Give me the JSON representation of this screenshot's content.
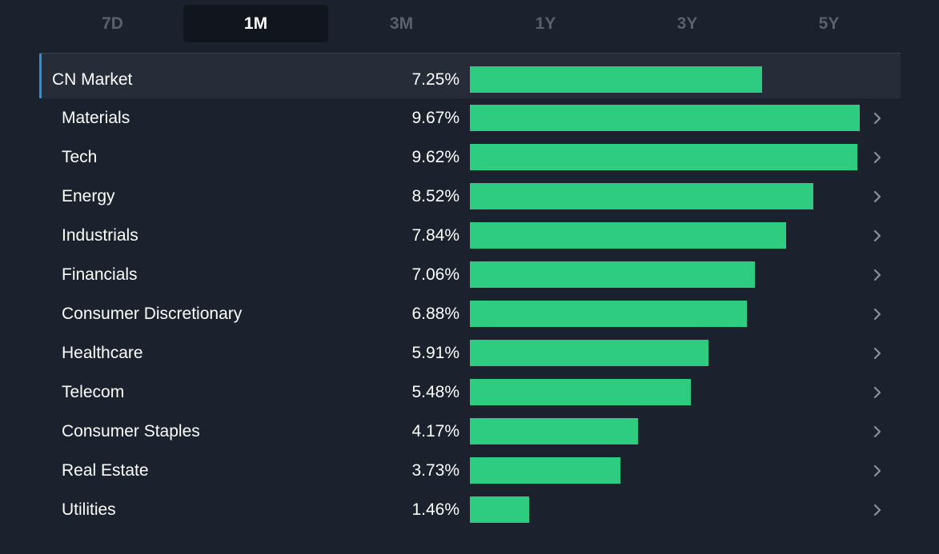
{
  "tabs": [
    {
      "label": "7D",
      "active": false
    },
    {
      "label": "1M",
      "active": true
    },
    {
      "label": "3M",
      "active": false
    },
    {
      "label": "1Y",
      "active": false
    },
    {
      "label": "3Y",
      "active": false
    },
    {
      "label": "5Y",
      "active": false
    }
  ],
  "colors": {
    "background": "#1b222d",
    "bar": "#2ecc80",
    "active_accent": "#2394df",
    "active_tab_bg": "#11161e",
    "inactive_tab_text": "#5a616c"
  },
  "market": {
    "label": "CN Market",
    "value": "7.25%",
    "percent": 7.25
  },
  "sectors": [
    {
      "label": "Materials",
      "value": "9.67%",
      "percent": 9.67
    },
    {
      "label": "Tech",
      "value": "9.62%",
      "percent": 9.62
    },
    {
      "label": "Energy",
      "value": "8.52%",
      "percent": 8.52
    },
    {
      "label": "Industrials",
      "value": "7.84%",
      "percent": 7.84
    },
    {
      "label": "Financials",
      "value": "7.06%",
      "percent": 7.06
    },
    {
      "label": "Consumer Discretionary",
      "value": "6.88%",
      "percent": 6.88
    },
    {
      "label": "Healthcare",
      "value": "5.91%",
      "percent": 5.91
    },
    {
      "label": "Telecom",
      "value": "5.48%",
      "percent": 5.48
    },
    {
      "label": "Consumer Staples",
      "value": "4.17%",
      "percent": 4.17
    },
    {
      "label": "Real Estate",
      "value": "3.73%",
      "percent": 3.73
    },
    {
      "label": "Utilities",
      "value": "1.46%",
      "percent": 1.46
    }
  ],
  "icons": {
    "row_chevron": "chevron-right-icon"
  }
}
